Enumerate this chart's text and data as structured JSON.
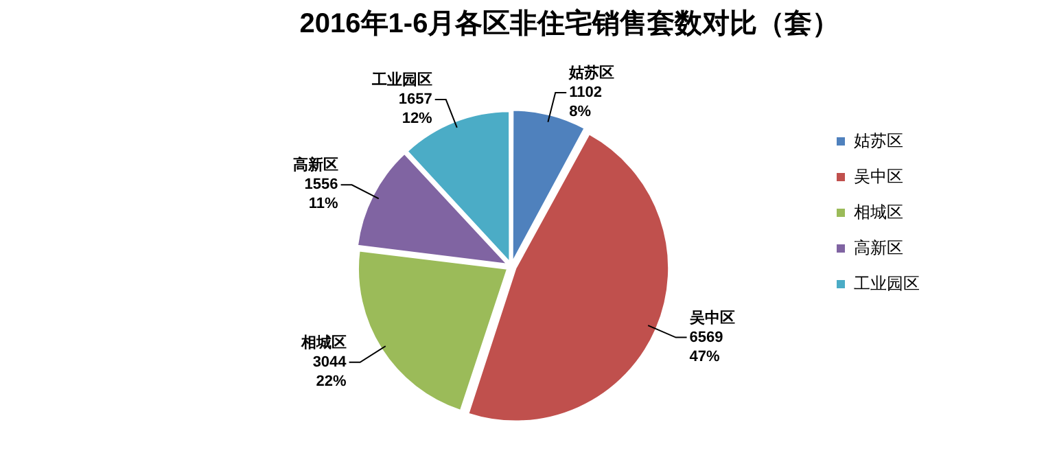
{
  "chart_data": {
    "type": "pie",
    "title": "2016年1-6月各区非住宅销售套数对比（套）",
    "categories": [
      "姑苏区",
      "吴中区",
      "相城区",
      "高新区",
      "工业园区"
    ],
    "values": [
      1102,
      6569,
      3044,
      1556,
      1657
    ],
    "colors": [
      "#4f81bd",
      "#c0504d",
      "#9bbb59",
      "#8064a2",
      "#4bacc6"
    ],
    "value_labels": [
      "1102\n8%",
      "6569\n47%",
      "3044\n22%",
      "1556\n11%",
      "1657\n12%"
    ],
    "legend": "right"
  }
}
